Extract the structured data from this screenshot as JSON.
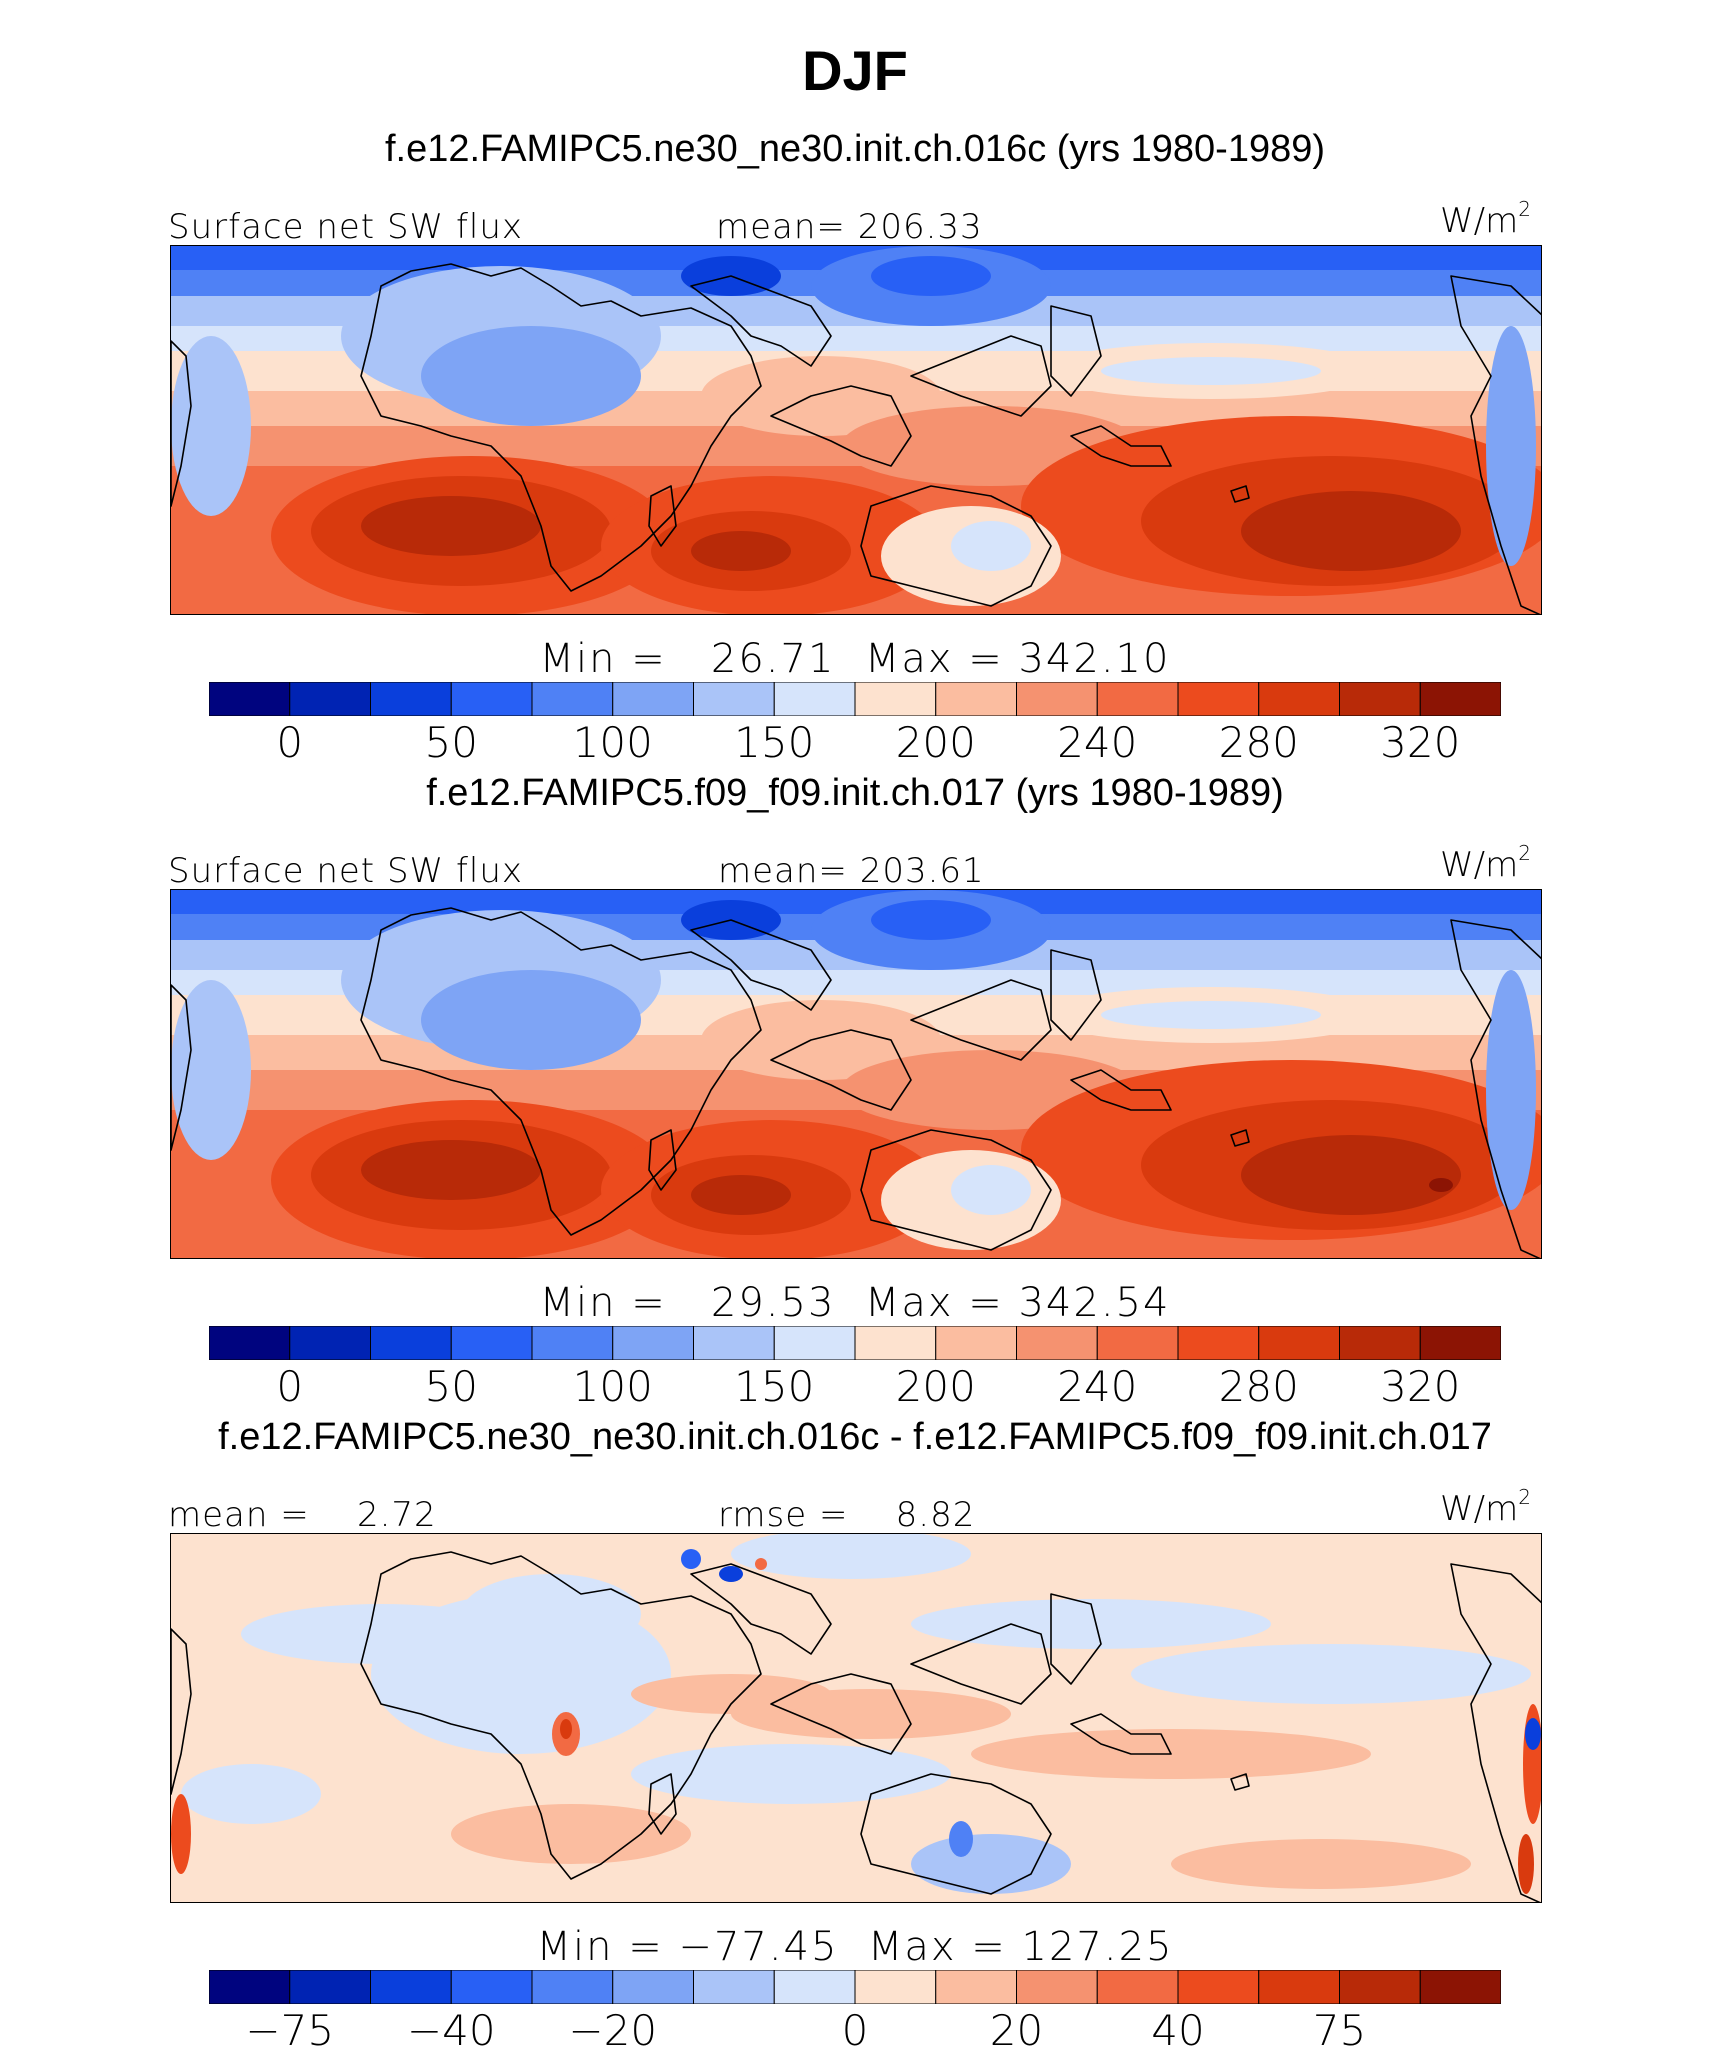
{
  "title": "DJF",
  "panels": [
    {
      "case_title": "f.e12.FAMIPC5.ne30_ne30.init.ch.016c (yrs 1980-1989)",
      "left_label": "Surface net SW flux",
      "center_label": "mean= 206.33",
      "units_base": "W/m",
      "units_exp": "2",
      "minmax": "Min =   26.71  Max = 342.10",
      "colorbar_ticks": [
        "0",
        "50",
        "100",
        "150",
        "200",
        "240",
        "280",
        "320"
      ],
      "colorbar_colors": [
        "#00047f",
        "#0023b3",
        "#0a3fdc",
        "#2860f5",
        "#4f81f5",
        "#7ea4f5",
        "#aac4f8",
        "#d6e4fb",
        "#fde2cf",
        "#fbbda0",
        "#f59270",
        "#f26a43",
        "#ec4b1e",
        "#d93a0e",
        "#b82a08",
        "#8c1404"
      ],
      "field": "mean_state"
    },
    {
      "case_title": "f.e12.FAMIPC5.f09_f09.init.ch.017 (yrs 1980-1989)",
      "left_label": "Surface net SW flux",
      "center_label": "mean= 203.61",
      "units_base": "W/m",
      "units_exp": "2",
      "minmax": "Min =   29.53  Max = 342.54",
      "colorbar_ticks": [
        "0",
        "50",
        "100",
        "150",
        "200",
        "240",
        "280",
        "320"
      ],
      "colorbar_colors": [
        "#00047f",
        "#0023b3",
        "#0a3fdc",
        "#2860f5",
        "#4f81f5",
        "#7ea4f5",
        "#aac4f8",
        "#d6e4fb",
        "#fde2cf",
        "#fbbda0",
        "#f59270",
        "#f26a43",
        "#ec4b1e",
        "#d93a0e",
        "#b82a08",
        "#8c1404"
      ],
      "field": "mean_state"
    },
    {
      "case_title": "f.e12.FAMIPC5.ne30_ne30.init.ch.016c - f.e12.FAMIPC5.f09_f09.init.ch.017",
      "left_label": "mean =    2.72",
      "center_label": "rmse =    8.82",
      "units_base": "W/m",
      "units_exp": "2",
      "minmax": "Min = −77.45  Max = 127.25",
      "colorbar_ticks": [
        "−75",
        "−40",
        "−20",
        "0",
        "20",
        "40",
        "75"
      ],
      "colorbar_colors": [
        "#00047f",
        "#0023b3",
        "#0a3fdc",
        "#2860f5",
        "#4f81f5",
        "#7ea4f5",
        "#aac4f8",
        "#d6e4fb",
        "#fde2cf",
        "#fbbda0",
        "#f59270",
        "#f26a43",
        "#ec4b1e",
        "#d93a0e",
        "#b82a08",
        "#8c1404"
      ],
      "field": "difference"
    }
  ]
}
